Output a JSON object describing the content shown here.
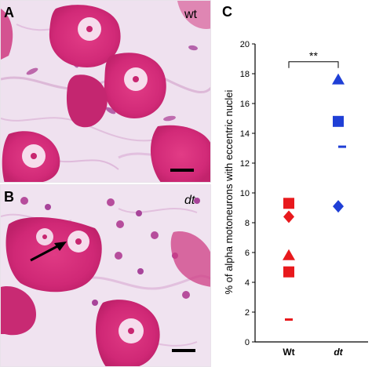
{
  "panels": {
    "a": {
      "letter": "A",
      "tag": "wt"
    },
    "b": {
      "letter": "B",
      "tag": "dt"
    },
    "c": {
      "letter": "C"
    }
  },
  "colors": {
    "wt": "#e8191d",
    "dt": "#1f3fd6",
    "tissue_stain": "#d9337c"
  },
  "chart_data": {
    "type": "scatter",
    "title": "",
    "xlabel": "",
    "ylabel": "% of alpha motoneurons with eccentric nuclei",
    "categories": [
      "Wt",
      "dt"
    ],
    "ylim": [
      0,
      20
    ],
    "yticks": [
      0,
      2,
      4,
      6,
      8,
      10,
      12,
      14,
      16,
      18,
      20
    ],
    "grid": false,
    "series": [
      {
        "category": "Wt",
        "color": "#e8191d",
        "points": [
          {
            "marker": "square",
            "y": 9.3
          },
          {
            "marker": "diamond",
            "y": 8.4
          },
          {
            "marker": "triangle",
            "y": 5.8
          },
          {
            "marker": "square",
            "y": 4.7
          },
          {
            "marker": "dash",
            "y": 1.5
          }
        ]
      },
      {
        "category": "dt",
        "color": "#1f3fd6",
        "points": [
          {
            "marker": "triangle",
            "y": 17.6
          },
          {
            "marker": "square",
            "y": 14.8
          },
          {
            "marker": "dash",
            "y": 13.1
          },
          {
            "marker": "diamond",
            "y": 9.1
          }
        ]
      }
    ],
    "annotations": [
      {
        "type": "significance-bracket",
        "between": [
          "Wt",
          "dt"
        ],
        "text": "**"
      }
    ]
  }
}
